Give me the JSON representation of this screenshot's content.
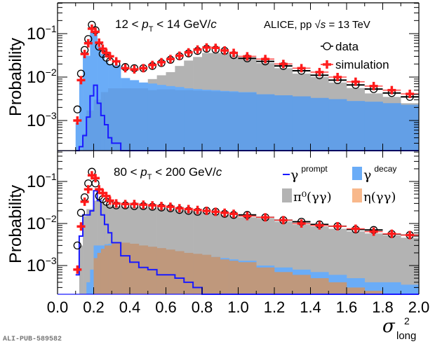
{
  "figure_id_label": "ALI-PUB-589582",
  "chart_data": [
    {
      "type": "bar",
      "panel": "top",
      "title": "12 < p_T < 14 GeV/c",
      "title_parts": {
        "pre": "12 < ",
        "var": "p",
        "sub": "T",
        "post": " < 14 GeV/",
        "unit_italic": "c"
      },
      "experiment_label": {
        "pre": "ALICE, pp ",
        "sqrt": "√",
        "s": "s",
        "post": " = 13 TeV"
      },
      "xlabel": "",
      "ylabel": "Probability",
      "xlim": [
        0.0,
        2.0
      ],
      "ylim": [
        0.0002,
        0.5
      ],
      "yscale": "log",
      "yticks": [
        {
          "value": 0.1,
          "label_base": "10",
          "label_exp": "−1"
        },
        {
          "value": 0.01,
          "label_base": "10",
          "label_exp": "−2"
        },
        {
          "value": 0.001,
          "label_base": "10",
          "label_exp": "−3"
        }
      ],
      "legend": {
        "position": "top-right",
        "entries": [
          {
            "label": "data",
            "marker": "open-circle"
          },
          {
            "label": "simulation",
            "marker": "red-cross"
          }
        ]
      },
      "bins": [
        0.1,
        0.12,
        0.14,
        0.16,
        0.18,
        0.2,
        0.22,
        0.24,
        0.26,
        0.28,
        0.3,
        0.35,
        0.4,
        0.45,
        0.5,
        0.55,
        0.6,
        0.65,
        0.7,
        0.75,
        0.8,
        0.85,
        0.9,
        0.95,
        1.0,
        1.1,
        1.2,
        1.3,
        1.4,
        1.5,
        1.6,
        1.7,
        1.8,
        1.9,
        2.0
      ],
      "series": [
        {
          "name": "data",
          "values": [
            0.0018,
            0.012,
            0.042,
            0.075,
            0.16,
            0.12,
            0.05,
            0.034,
            0.028,
            0.023,
            0.02,
            0.017,
            0.016,
            0.016,
            0.018,
            0.021,
            0.025,
            0.03,
            0.035,
            0.04,
            0.045,
            0.043,
            0.04,
            0.032,
            0.027,
            0.023,
            0.018,
            0.014,
            0.011,
            0.0085,
            0.0066,
            0.0053,
            0.0043,
            0.0035
          ]
        },
        {
          "name": "simulation",
          "values": [
            0.001,
            0.0085,
            0.034,
            0.06,
            0.13,
            0.11,
            0.062,
            0.045,
            0.036,
            0.03,
            0.023,
            0.016,
            0.015,
            0.016,
            0.019,
            0.022,
            0.026,
            0.031,
            0.037,
            0.043,
            0.048,
            0.047,
            0.041,
            0.036,
            0.03,
            0.026,
            0.02,
            0.016,
            0.013,
            0.01,
            0.0078,
            0.0062,
            0.005,
            0.0041
          ]
        },
        {
          "name": "gamma_decay_total",
          "values": [
            0.0009,
            0.0086,
            0.031,
            0.031,
            0.11,
            0.11,
            0.05,
            0.034,
            0.023,
            0.02,
            0.019,
            0.0095,
            0.0085,
            0.0075,
            0.0071,
            0.0066,
            0.0062,
            0.0059,
            0.0055,
            0.0053,
            0.0051,
            0.005,
            0.0048,
            0.0047,
            0.0045,
            0.004,
            0.0038,
            0.0036,
            0.0033,
            0.0031,
            0.0028,
            0.0027,
            0.0025,
            0.0023
          ]
        },
        {
          "name": "pi0_gg",
          "values": [
            0,
            0,
            0,
            0,
            0,
            0,
            0,
            0,
            0,
            0,
            0,
            0,
            0,
            0,
            0.009,
            0.011,
            0.013,
            0.018,
            0.024,
            0.029,
            0.036,
            0.036,
            0.036,
            0.032,
            0.026,
            0.021,
            0.016,
            0.012,
            0.01,
            0.0075,
            0.0056,
            0.0042,
            0.0035,
            0.0025
          ]
        },
        {
          "name": "gamma_decay_dark",
          "values": [
            0,
            0,
            0.0005,
            0.0017,
            0.0017,
            0.003,
            0.003,
            0.0045,
            0.0045,
            0.0055,
            0.0055,
            0.0055,
            0.0055,
            0.0055,
            0.005,
            0.0052,
            0.0052,
            0.005,
            0.005,
            0.0049,
            0.0048,
            0.0047,
            0.0046,
            0.0045,
            0.0044,
            0.004,
            0.0038,
            0.0036,
            0.0033,
            0.0031,
            0.0028,
            0.0027,
            0.0025,
            0.0023
          ]
        },
        {
          "name": "gamma_prompt",
          "values": [
            0,
            0.00025,
            0.00045,
            0.0012,
            0.0037,
            0.0065,
            0.0025,
            0.0013,
            0.0008,
            0.0004,
            0.0003,
            0.0002,
            0,
            0,
            0,
            0,
            0,
            0,
            0,
            0,
            0,
            0,
            0,
            0,
            0,
            0,
            0,
            0,
            0,
            0,
            0,
            0,
            0,
            0
          ]
        }
      ]
    },
    {
      "type": "bar",
      "panel": "bottom",
      "title": "80 < p_T < 200 GeV/c",
      "title_parts": {
        "pre": "80 < ",
        "var": "p",
        "sub": "T",
        "post": " < 200 GeV/",
        "unit_italic": "c"
      },
      "xlabel": "σ²_long",
      "xlabel_parts": {
        "sym": "σ",
        "sup": "2",
        "sub": "long"
      },
      "ylabel": "Probability",
      "xlim": [
        0.0,
        2.0
      ],
      "ylim": [
        0.0002,
        0.5
      ],
      "yscale": "log",
      "xticks": [
        "0.0",
        "0.2",
        "0.4",
        "0.6",
        "0.8",
        "1.0",
        "1.2",
        "1.4",
        "1.6",
        "1.8",
        "2.0"
      ],
      "xtick_values": [
        0.0,
        0.2,
        0.4,
        0.6,
        0.8,
        1.0,
        1.2,
        1.4,
        1.6,
        1.8,
        2.0
      ],
      "yticks": [
        {
          "value": 0.1,
          "label_base": "10",
          "label_exp": "−1"
        },
        {
          "value": 0.01,
          "label_base": "10",
          "label_exp": "−2"
        },
        {
          "value": 0.001,
          "label_base": "10",
          "label_exp": "−3"
        }
      ],
      "legend": {
        "position": "top-right",
        "entries": [
          {
            "label_main": "γ",
            "label_sup": "prompt",
            "swatch": "line",
            "color": "#1a1aff"
          },
          {
            "label_main": "γ",
            "label_sup": "decay",
            "swatch": "box",
            "color": "#6aacf7"
          },
          {
            "label_main": "π⁰(γγ)",
            "label_sup": "",
            "swatch": "box",
            "color": "#b3b3b3"
          },
          {
            "label_main": "η(γγ)",
            "label_sup": "",
            "swatch": "box",
            "color": "#f8b88b"
          }
        ]
      },
      "bins": [
        0.1,
        0.12,
        0.14,
        0.16,
        0.18,
        0.2,
        0.22,
        0.24,
        0.26,
        0.28,
        0.3,
        0.35,
        0.4,
        0.45,
        0.5,
        0.55,
        0.6,
        0.65,
        0.7,
        0.75,
        0.8,
        0.85,
        0.9,
        0.95,
        1.0,
        1.1,
        1.2,
        1.3,
        1.4,
        1.5,
        1.6,
        1.7,
        1.8,
        1.9,
        2.0
      ],
      "series": [
        {
          "name": "data",
          "values": [
            0.003,
            0.018,
            0.042,
            0.09,
            0.17,
            0.09,
            0.045,
            0.038,
            0.033,
            0.028,
            0.027,
            0.027,
            0.026,
            0.026,
            0.025,
            0.024,
            0.023,
            0.021,
            0.02,
            0.019,
            0.02,
            0.019,
            0.017,
            0.016,
            0.016,
            0.014,
            0.012,
            0.011,
            0.0095,
            0.0086,
            0.0072,
            0.007,
            0.0056,
            0.0053
          ]
        },
        {
          "name": "simulation",
          "values": [
            0.0008,
            0.0085,
            0.033,
            0.065,
            0.14,
            0.12,
            0.065,
            0.053,
            0.045,
            0.035,
            0.03,
            0.029,
            0.029,
            0.028,
            0.027,
            0.026,
            0.025,
            0.023,
            0.022,
            0.021,
            0.02,
            0.019,
            0.018,
            0.017,
            0.015,
            0.014,
            0.012,
            0.01,
            0.009,
            0.0086,
            0.0075,
            0.0064,
            0.0057,
            0.0053
          ]
        },
        {
          "name": "pi0_gg",
          "values": [
            0,
            0.003,
            0.015,
            0.022,
            0.022,
            0.035,
            0.035,
            0.03,
            0.028,
            0.027,
            0.026,
            0.025,
            0.025,
            0.024,
            0.023,
            0.023,
            0.022,
            0.021,
            0.02,
            0.019,
            0.018,
            0.017,
            0.016,
            0.015,
            0.014,
            0.013,
            0.011,
            0.0095,
            0.0085,
            0.0075,
            0.0065,
            0.0058,
            0.0052,
            0.0046
          ]
        },
        {
          "name": "gamma_decay_total",
          "values": [
            0,
            0,
            0,
            0.0004,
            0.0008,
            0.003,
            0.003,
            0.003,
            0.0032,
            0.0033,
            0.0033,
            0.0031,
            0.0029,
            0.0026,
            0.0025,
            0.0023,
            0.0022,
            0.002,
            0.0019,
            0.0018,
            0.0017,
            0.0016,
            0.0015,
            0.0014,
            0.0013,
            0.001,
            0.0009,
            0.0008,
            0.0007,
            0.0006,
            0.0005,
            0.0004,
            0.0004,
            0.00035
          ]
        },
        {
          "name": "eta_gg",
          "values": [
            0,
            0,
            0,
            0,
            0,
            0.0015,
            0.002,
            0.0025,
            0.003,
            0.003,
            0.0035,
            0.0035,
            0.0033,
            0.003,
            0.0028,
            0.0026,
            0.0024,
            0.0022,
            0.002,
            0.0019,
            0.0018,
            0.0016,
            0.0014,
            0.0013,
            0.0012,
            0.0009,
            0.0007,
            0.0006,
            0.0005,
            0.0004,
            0.0003,
            0.00025,
            0,
            0
          ]
        },
        {
          "name": "gamma_prompt",
          "values": [
            0.0006,
            0.005,
            0.016,
            0.016,
            0.02,
            0.06,
            0.035,
            0.016,
            0.0095,
            0.006,
            0.0035,
            0.0017,
            0.0012,
            0.0009,
            0.0008,
            0.0006,
            0.0006,
            0.0005,
            0.0004,
            0.0003,
            0.0002,
            0.0002,
            0,
            0,
            0,
            0,
            0,
            0,
            0,
            0,
            0,
            0,
            0,
            0
          ]
        }
      ]
    }
  ]
}
